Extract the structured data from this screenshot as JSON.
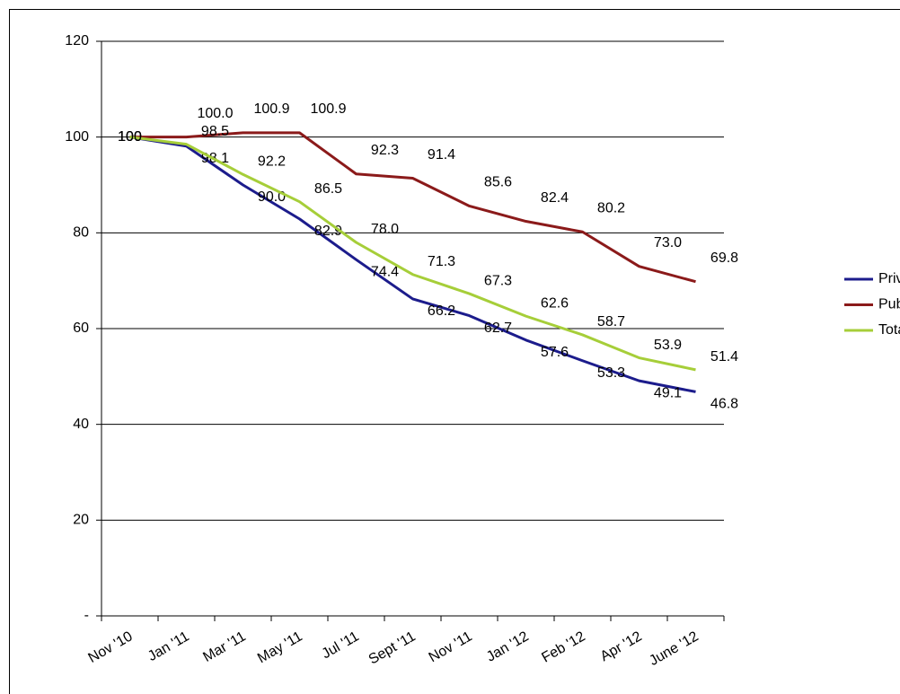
{
  "chart_data": {
    "type": "line",
    "categories": [
      "Nov '10",
      "Jan '11",
      "Mar '11",
      "May '11",
      "Jul '11",
      "Sept '11",
      "Nov '11",
      "Jan '12",
      "Feb '12",
      "Apr '12",
      "June '12"
    ],
    "series": [
      {
        "name": "Privé",
        "color": "#1c1c8c",
        "values": [
          100,
          98.1,
          90.0,
          82.9,
          74.4,
          66.2,
          62.7,
          57.6,
          53.3,
          49.1,
          46.8
        ],
        "value_labels": [
          "100",
          "98.1",
          "90.0",
          "82.9",
          "74.4",
          "66.2",
          "62.7",
          "57.6",
          "53.3",
          "49.1",
          "46.8"
        ]
      },
      {
        "name": "Public",
        "color": "#8b1a1a",
        "values": [
          100,
          100.0,
          100.9,
          100.9,
          92.3,
          91.4,
          85.6,
          82.4,
          80.2,
          73.0,
          69.8
        ],
        "value_labels": [
          "100",
          "100.0",
          "100.9",
          "100.9",
          "92.3",
          "91.4",
          "85.6",
          "82.4",
          "80.2",
          "73.0",
          "69.8"
        ]
      },
      {
        "name": "Total",
        "color": "#a6ce39",
        "values": [
          100,
          98.5,
          92.2,
          86.5,
          78.0,
          71.3,
          67.3,
          62.6,
          58.7,
          53.9,
          51.4
        ],
        "value_labels": [
          "100",
          "98.5",
          "92.2",
          "86.5",
          "78.0",
          "71.3",
          "67.3",
          "62.6",
          "58.7",
          "53.9",
          "51.4"
        ]
      }
    ],
    "ylim": [
      0,
      120
    ],
    "yticks": [
      {
        "value": 0,
        "label": "-"
      },
      20,
      40,
      60,
      80,
      100,
      120
    ],
    "grid": true,
    "legend": "right"
  }
}
